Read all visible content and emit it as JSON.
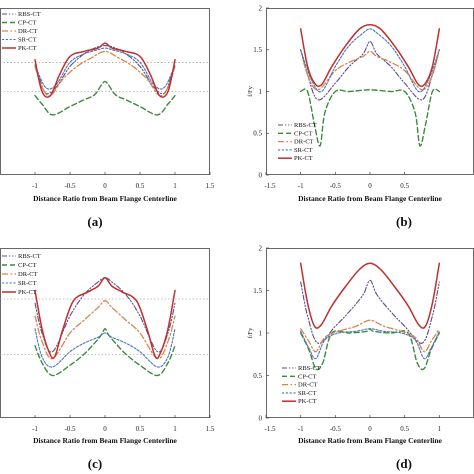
{
  "figure": {
    "legend_labels": [
      "RBS-CT",
      "CP-CT",
      "DR-CT",
      "SR-CT",
      "PK-CT"
    ]
  },
  "series_colors": {
    "RBS-CT": "#5a4a8e",
    "CP-CT": "#3d8a3d",
    "DR-CT": "#d8864a",
    "SR-CT": "#4a76b8",
    "PK-CT": "#c0302c"
  },
  "chart_data": [
    {
      "type": "line",
      "caption": "(a)",
      "xlabel": "Distance Ratio from Beam Flange Centerline",
      "ylabel": "",
      "xlim": [
        -1.5,
        1.5
      ],
      "ylim": [
        0,
        2
      ],
      "xticks": [
        "-1",
        "-0.5",
        "0",
        "0.5",
        "1",
        "1.5"
      ],
      "yticks": [],
      "reference_lines": [
        1,
        1.35
      ],
      "grid": false,
      "legend_position": "top-left",
      "series": [
        {
          "name": "RBS-CT",
          "x": [
            -1,
            -0.95,
            -0.85,
            -0.7,
            -0.5,
            -0.3,
            -0.15,
            0,
            0.15,
            0.3,
            0.5,
            0.7,
            0.85,
            0.95,
            1
          ],
          "y": [
            1.3,
            1.2,
            0.98,
            1.05,
            1.3,
            1.45,
            1.52,
            1.55,
            1.52,
            1.45,
            1.3,
            1.05,
            0.98,
            1.2,
            1.3
          ]
        },
        {
          "name": "CP-CT",
          "x": [
            -1,
            -0.9,
            -0.75,
            -0.5,
            -0.3,
            -0.15,
            -0.05,
            0,
            0.05,
            0.15,
            0.3,
            0.5,
            0.75,
            0.9,
            1
          ],
          "y": [
            0.95,
            0.85,
            0.72,
            0.82,
            0.9,
            0.96,
            1.08,
            1.12,
            1.08,
            0.96,
            0.9,
            0.82,
            0.72,
            0.85,
            0.95
          ]
        },
        {
          "name": "DR-CT",
          "x": [
            -1,
            -0.9,
            -0.78,
            -0.6,
            -0.4,
            -0.2,
            0,
            0.2,
            0.4,
            0.6,
            0.78,
            0.9,
            1
          ],
          "y": [
            1.3,
            1.05,
            0.95,
            1.15,
            1.3,
            1.4,
            1.48,
            1.4,
            1.3,
            1.15,
            0.95,
            1.05,
            1.3
          ]
        },
        {
          "name": "SR-CT",
          "x": [
            -1,
            -0.85,
            -0.7,
            -0.5,
            -0.3,
            -0.1,
            0,
            0.1,
            0.3,
            0.5,
            0.7,
            0.85,
            1
          ],
          "y": [
            1.32,
            1.05,
            1.08,
            1.35,
            1.45,
            1.5,
            1.52,
            1.5,
            1.45,
            1.35,
            1.08,
            1.05,
            1.32
          ]
        },
        {
          "name": "PK-CT",
          "x": [
            -1,
            -0.9,
            -0.78,
            -0.65,
            -0.5,
            -0.3,
            -0.1,
            0,
            0.1,
            0.3,
            0.5,
            0.65,
            0.78,
            0.9,
            1
          ],
          "y": [
            1.38,
            1.0,
            0.95,
            1.2,
            1.42,
            1.48,
            1.52,
            1.58,
            1.52,
            1.48,
            1.42,
            1.2,
            0.95,
            1.0,
            1.38
          ]
        }
      ]
    },
    {
      "type": "line",
      "caption": "(b)",
      "xlabel": "Distance Ratio from Beam Flange Centerline",
      "ylabel": "f/Fy",
      "xlim": [
        -1.5,
        1.5
      ],
      "ylim": [
        0,
        2
      ],
      "xticks": [
        "-1.5",
        "-1",
        "-0.5",
        "0",
        "0.5"
      ],
      "yticks": [
        "0",
        "0.5",
        "1",
        "1.5",
        "2"
      ],
      "grid": false,
      "legend_position": "bottom-left",
      "series": [
        {
          "name": "RBS-CT",
          "x": [
            -1,
            -0.9,
            -0.75,
            -0.5,
            -0.3,
            -0.1,
            0,
            0.1,
            0.3,
            0.5,
            0.75,
            0.9,
            1
          ],
          "y": [
            1.5,
            1.2,
            0.9,
            1.1,
            1.3,
            1.45,
            1.6,
            1.45,
            1.3,
            1.1,
            0.9,
            1.2,
            1.5
          ]
        },
        {
          "name": "CP-CT",
          "x": [
            -1,
            -0.9,
            -0.8,
            -0.72,
            -0.65,
            -0.5,
            -0.3,
            0,
            0.3,
            0.5,
            0.65,
            0.72,
            0.8,
            0.9,
            1
          ],
          "y": [
            1.0,
            1.0,
            0.6,
            0.35,
            0.75,
            1.0,
            1.0,
            1.02,
            1.0,
            1.0,
            0.75,
            0.35,
            0.6,
            1.0,
            1.0
          ]
        },
        {
          "name": "DR-CT",
          "x": [
            -1,
            -0.9,
            -0.75,
            -0.5,
            -0.3,
            -0.1,
            0,
            0.1,
            0.3,
            0.5,
            0.75,
            0.9,
            1
          ],
          "y": [
            1.5,
            1.2,
            1.02,
            1.25,
            1.35,
            1.42,
            1.48,
            1.42,
            1.35,
            1.25,
            1.02,
            1.2,
            1.5
          ]
        },
        {
          "name": "SR-CT",
          "x": [
            -1,
            -0.85,
            -0.7,
            -0.5,
            -0.3,
            -0.1,
            0,
            0.1,
            0.3,
            0.5,
            0.7,
            0.85,
            1
          ],
          "y": [
            1.5,
            1.15,
            1.0,
            1.3,
            1.55,
            1.7,
            1.75,
            1.7,
            1.55,
            1.3,
            1.0,
            1.15,
            1.5
          ]
        },
        {
          "name": "PK-CT",
          "x": [
            -1,
            -0.9,
            -0.8,
            -0.7,
            -0.55,
            -0.35,
            -0.15,
            0,
            0.15,
            0.35,
            0.55,
            0.7,
            0.8,
            0.9,
            1
          ],
          "y": [
            1.75,
            1.3,
            1.1,
            1.08,
            1.3,
            1.55,
            1.75,
            1.8,
            1.75,
            1.55,
            1.3,
            1.08,
            1.1,
            1.3,
            1.75
          ]
        }
      ]
    },
    {
      "type": "line",
      "caption": "(c)",
      "xlabel": "Distance Ratio from Beam Flange Centerline",
      "ylabel": "",
      "xlim": [
        -1.5,
        1.5
      ],
      "ylim": [
        0,
        2
      ],
      "xticks": [
        "-1",
        "-0.5",
        "0",
        "0.5",
        "1",
        "1.5"
      ],
      "yticks": [],
      "reference_lines": [
        0.75,
        1.4
      ],
      "grid": false,
      "legend_position": "top-left",
      "series": [
        {
          "name": "RBS-CT",
          "x": [
            -1,
            -0.9,
            -0.75,
            -0.5,
            -0.3,
            -0.1,
            0,
            0.1,
            0.3,
            0.5,
            0.75,
            0.9,
            1
          ],
          "y": [
            1.35,
            1.0,
            0.78,
            1.2,
            1.45,
            1.6,
            1.65,
            1.6,
            1.45,
            1.2,
            0.78,
            1.0,
            1.35
          ]
        },
        {
          "name": "CP-CT",
          "x": [
            -1,
            -0.9,
            -0.75,
            -0.5,
            -0.3,
            -0.15,
            -0.05,
            0,
            0.05,
            0.15,
            0.3,
            0.5,
            0.75,
            0.9,
            1
          ],
          "y": [
            0.85,
            0.65,
            0.5,
            0.62,
            0.75,
            0.88,
            0.98,
            1.05,
            0.98,
            0.88,
            0.75,
            0.62,
            0.5,
            0.65,
            0.85
          ]
        },
        {
          "name": "DR-CT",
          "x": [
            -1,
            -0.9,
            -0.75,
            -0.5,
            -0.3,
            -0.1,
            0,
            0.1,
            0.3,
            0.5,
            0.75,
            0.9,
            1
          ],
          "y": [
            1.2,
            0.9,
            0.7,
            1.0,
            1.15,
            1.3,
            1.38,
            1.3,
            1.15,
            1.0,
            0.7,
            0.9,
            1.2
          ]
        },
        {
          "name": "SR-CT",
          "x": [
            -1,
            -0.9,
            -0.75,
            -0.5,
            -0.3,
            -0.1,
            0,
            0.1,
            0.3,
            0.5,
            0.75,
            0.9,
            1
          ],
          "y": [
            1.05,
            0.72,
            0.6,
            0.78,
            0.88,
            0.95,
            1.0,
            0.95,
            0.88,
            0.78,
            0.6,
            0.72,
            1.05
          ]
        },
        {
          "name": "PK-CT",
          "x": [
            -1,
            -0.9,
            -0.8,
            -0.72,
            -0.6,
            -0.45,
            -0.25,
            -0.1,
            0,
            0.1,
            0.25,
            0.45,
            0.6,
            0.72,
            0.8,
            0.9,
            1
          ],
          "y": [
            1.5,
            1.05,
            0.78,
            0.72,
            1.05,
            1.38,
            1.48,
            1.55,
            1.65,
            1.55,
            1.48,
            1.38,
            1.05,
            0.72,
            0.78,
            1.05,
            1.5
          ]
        }
      ]
    },
    {
      "type": "line",
      "caption": "(d)",
      "xlabel": "Distance Ratio from Beam Flange Centerline",
      "ylabel": "f/Fy",
      "xlim": [
        -1.5,
        1.5
      ],
      "ylim": [
        0,
        2
      ],
      "xticks": [
        "-1.5",
        "-1",
        "-0.5",
        "0",
        "0.5",
        "1"
      ],
      "yticks": [
        "0",
        "0.5",
        "1",
        "1.5",
        "2"
      ],
      "grid": false,
      "legend_position": "bottom-left",
      "series": [
        {
          "name": "RBS-CT",
          "x": [
            -1,
            -0.9,
            -0.75,
            -0.5,
            -0.3,
            -0.1,
            0,
            0.1,
            0.3,
            0.5,
            0.75,
            0.9,
            1
          ],
          "y": [
            1.6,
            1.2,
            0.88,
            1.08,
            1.25,
            1.45,
            1.62,
            1.45,
            1.25,
            1.08,
            0.88,
            1.2,
            1.6
          ]
        },
        {
          "name": "CP-CT",
          "x": [
            -1,
            -0.88,
            -0.78,
            -0.68,
            -0.55,
            -0.3,
            -0.05,
            0,
            0.05,
            0.3,
            0.55,
            0.68,
            0.78,
            0.88,
            1
          ],
          "y": [
            1.0,
            0.8,
            0.58,
            0.65,
            1.0,
            1.0,
            1.02,
            1.05,
            1.02,
            1.0,
            1.0,
            0.65,
            0.58,
            0.8,
            1.0
          ]
        },
        {
          "name": "DR-CT",
          "x": [
            -1,
            -0.88,
            -0.78,
            -0.65,
            -0.45,
            -0.2,
            0,
            0.2,
            0.45,
            0.65,
            0.78,
            0.88,
            1
          ],
          "y": [
            1.05,
            0.9,
            0.78,
            0.95,
            1.02,
            1.08,
            1.15,
            1.08,
            1.02,
            0.95,
            0.78,
            0.9,
            1.05
          ]
        },
        {
          "name": "SR-CT",
          "x": [
            -1,
            -0.88,
            -0.78,
            -0.65,
            -0.45,
            -0.2,
            0,
            0.2,
            0.45,
            0.65,
            0.78,
            0.88,
            1
          ],
          "y": [
            1.02,
            0.82,
            0.7,
            0.92,
            1.0,
            1.02,
            1.05,
            1.02,
            1.0,
            0.92,
            0.7,
            0.82,
            1.02
          ]
        },
        {
          "name": "PK-CT",
          "x": [
            -1,
            -0.9,
            -0.8,
            -0.7,
            -0.55,
            -0.35,
            -0.15,
            0,
            0.15,
            0.35,
            0.55,
            0.7,
            0.8,
            0.9,
            1
          ],
          "y": [
            1.82,
            1.35,
            1.08,
            1.1,
            1.32,
            1.55,
            1.75,
            1.82,
            1.75,
            1.55,
            1.32,
            1.1,
            1.08,
            1.35,
            1.82
          ]
        }
      ]
    }
  ]
}
